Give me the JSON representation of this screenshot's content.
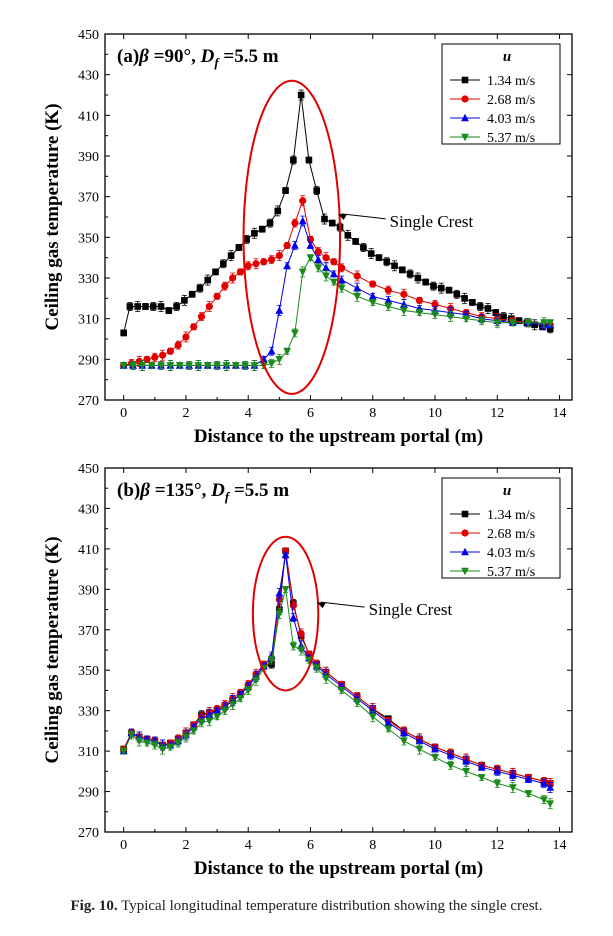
{
  "caption": {
    "label": "Fig. 10.",
    "text": "Typical longitudinal temperature distribution showing the single crest."
  },
  "chart_data": [
    {
      "type": "line",
      "panel_label": "(a)",
      "panel_param": "β =90°, D_f =5.5 m",
      "title": "",
      "xlabel": "Distance to the upstream portal (m)",
      "ylabel": "Ceiling gas temperature (K)",
      "xlim": [
        -0.6,
        14.4
      ],
      "ylim": [
        270,
        450
      ],
      "xticks": [
        0,
        2,
        4,
        6,
        8,
        10,
        12,
        14
      ],
      "yticks": [
        270,
        290,
        310,
        330,
        350,
        370,
        390,
        410,
        430,
        450
      ],
      "legend_title": "u",
      "legend_position": "top-right",
      "annotation": {
        "text": "Single Crest",
        "ellipse_center": [
          5.4,
          350
        ],
        "ellipse_semi": [
          1.55,
          77
        ]
      },
      "series": [
        {
          "name": "1.34 m/s",
          "color": "#000000",
          "marker": "square",
          "x": [
            0,
            0.2,
            0.45,
            0.7,
            0.95,
            1.2,
            1.45,
            1.7,
            1.95,
            2.2,
            2.45,
            2.7,
            2.95,
            3.2,
            3.45,
            3.7,
            3.95,
            4.2,
            4.45,
            4.7,
            4.95,
            5.2,
            5.45,
            5.7,
            5.95,
            6.2,
            6.45,
            6.7,
            6.95,
            7.2,
            7.45,
            7.7,
            7.95,
            8.2,
            8.45,
            8.7,
            8.95,
            9.2,
            9.45,
            9.7,
            9.95,
            10.2,
            10.45,
            10.7,
            10.95,
            11.2,
            11.45,
            11.7,
            11.95,
            12.2,
            12.45,
            12.7,
            12.95,
            13.2,
            13.45,
            13.7
          ],
          "y": [
            303,
            316,
            316,
            316,
            316,
            316,
            314,
            316,
            319,
            322,
            325,
            329,
            333,
            337,
            341,
            345,
            349,
            352,
            354,
            357,
            363,
            373,
            388,
            420,
            388,
            373,
            359,
            357,
            355,
            351,
            348,
            345,
            342,
            340,
            338,
            336,
            334,
            332,
            330,
            328,
            326,
            325,
            324,
            322,
            320,
            318,
            316,
            315,
            313,
            311,
            310,
            309,
            308,
            307,
            306,
            305
          ]
        },
        {
          "name": "2.68 m/s",
          "color": "#e00000",
          "marker": "circle",
          "x": [
            0,
            0.25,
            0.5,
            0.75,
            1.0,
            1.25,
            1.5,
            1.75,
            2.0,
            2.25,
            2.5,
            2.75,
            3.0,
            3.25,
            3.5,
            3.75,
            4.0,
            4.25,
            4.5,
            4.75,
            5.0,
            5.25,
            5.5,
            5.75,
            6.0,
            6.25,
            6.5,
            6.75,
            7.0,
            7.5,
            8.0,
            8.5,
            9.0,
            9.5,
            10.0,
            10.5,
            11.0,
            11.5,
            12.0,
            12.5,
            13.0,
            13.5,
            13.7
          ],
          "y": [
            287,
            288,
            289,
            290,
            291,
            292,
            294,
            297,
            301,
            306,
            311,
            316,
            321,
            326,
            330,
            333,
            336,
            337,
            338,
            339,
            341,
            346,
            357,
            368,
            349,
            343,
            340,
            338,
            335,
            331,
            327,
            324,
            322,
            319,
            317,
            315,
            313,
            311,
            310,
            309,
            308,
            307,
            307
          ]
        },
        {
          "name": "4.03 m/s",
          "color": "#0000ee",
          "marker": "triangle-up",
          "x": [
            0,
            0.3,
            0.6,
            0.9,
            1.2,
            1.5,
            1.8,
            2.1,
            2.4,
            2.7,
            3.0,
            3.3,
            3.6,
            3.9,
            4.2,
            4.5,
            4.75,
            5.0,
            5.25,
            5.5,
            5.75,
            6.0,
            6.25,
            6.5,
            6.75,
            7.0,
            7.5,
            8.0,
            8.5,
            9.0,
            9.5,
            10.0,
            10.5,
            11.0,
            11.5,
            12.0,
            12.5,
            13.0,
            13.5,
            13.7
          ],
          "y": [
            287,
            287,
            287,
            287,
            287,
            287,
            287,
            287,
            287,
            287,
            287,
            287,
            287,
            287,
            287,
            290,
            294,
            314,
            336,
            346,
            358,
            346,
            339,
            335,
            332,
            329,
            325,
            321,
            319,
            317,
            315,
            314,
            313,
            312,
            310,
            309,
            308,
            308,
            307,
            307
          ]
        },
        {
          "name": "5.37 m/s",
          "color": "#1a8a1a",
          "marker": "triangle-down",
          "x": [
            0,
            0.3,
            0.6,
            0.9,
            1.2,
            1.5,
            1.8,
            2.1,
            2.4,
            2.7,
            3.0,
            3.3,
            3.6,
            3.9,
            4.2,
            4.5,
            4.75,
            5.0,
            5.25,
            5.5,
            5.75,
            6.0,
            6.25,
            6.5,
            6.75,
            7.0,
            7.5,
            8.0,
            8.5,
            9.0,
            9.5,
            10.0,
            10.5,
            11.0,
            11.5,
            12.0,
            12.5,
            13.0,
            13.5,
            13.7
          ],
          "y": [
            287,
            287,
            287,
            287,
            287,
            287,
            287,
            287,
            287,
            287,
            287,
            287,
            287,
            287,
            287,
            287,
            288,
            290,
            294,
            303,
            333,
            340,
            335,
            331,
            328,
            325,
            321,
            318,
            316,
            314,
            313,
            312,
            311,
            310,
            309,
            308,
            308,
            308,
            308,
            308
          ]
        }
      ]
    },
    {
      "type": "line",
      "panel_label": "(b)",
      "panel_param": "β =135°, D_f =5.5 m",
      "title": "",
      "xlabel": "Distance to the upstream portal (m)",
      "ylabel": "Ceiling gas temperature (K)",
      "xlim": [
        -0.6,
        14.4
      ],
      "ylim": [
        270,
        450
      ],
      "xticks": [
        0,
        2,
        4,
        6,
        8,
        10,
        12,
        14
      ],
      "yticks": [
        270,
        290,
        310,
        330,
        350,
        370,
        390,
        410,
        430,
        450
      ],
      "legend_title": "u",
      "legend_position": "top-right",
      "annotation": {
        "text": "Single Crest",
        "ellipse_center": [
          5.2,
          378
        ],
        "ellipse_semi": [
          1.05,
          38
        ]
      },
      "series": [
        {
          "name": "1.34 m/s",
          "color": "#000000",
          "marker": "square",
          "x": [
            0,
            0.25,
            0.5,
            0.75,
            1.0,
            1.25,
            1.5,
            1.75,
            2.0,
            2.25,
            2.5,
            2.75,
            3.0,
            3.25,
            3.5,
            3.75,
            4.0,
            4.25,
            4.5,
            4.75,
            5.0,
            5.2,
            5.45,
            5.7,
            5.95,
            6.2,
            6.5,
            7.0,
            7.5,
            8.0,
            8.5,
            9.0,
            9.5,
            10.0,
            10.5,
            11.0,
            11.5,
            12.0,
            12.5,
            13.0,
            13.5,
            13.7
          ],
          "y": [
            311,
            319,
            317,
            316,
            315,
            313,
            314,
            316,
            319,
            323,
            328,
            329,
            330,
            332,
            335,
            338,
            342,
            347,
            352,
            353,
            380,
            409,
            383,
            367,
            358,
            353,
            349,
            343,
            337,
            331,
            326,
            320,
            316,
            312,
            309,
            306,
            303,
            301,
            299,
            297,
            295,
            294
          ]
        },
        {
          "name": "2.68 m/s",
          "color": "#e00000",
          "marker": "circle",
          "x": [
            0,
            0.25,
            0.5,
            0.75,
            1.0,
            1.25,
            1.5,
            1.75,
            2.0,
            2.25,
            2.5,
            2.75,
            3.0,
            3.25,
            3.5,
            3.75,
            4.0,
            4.25,
            4.5,
            4.75,
            5.0,
            5.2,
            5.45,
            5.7,
            5.95,
            6.2,
            6.5,
            7.0,
            7.5,
            8.0,
            8.5,
            9.0,
            9.5,
            10.0,
            10.5,
            11.0,
            11.5,
            12.0,
            12.5,
            13.0,
            13.5,
            13.7
          ],
          "y": [
            311,
            319,
            317,
            316,
            315,
            313,
            314,
            316,
            319,
            323,
            327,
            329,
            331,
            333,
            336,
            339,
            343,
            348,
            353,
            356,
            385,
            409,
            382,
            368,
            358,
            353,
            349,
            343,
            337,
            331,
            325,
            320,
            316,
            312,
            309,
            306,
            303,
            301,
            299,
            297,
            295,
            294
          ]
        },
        {
          "name": "4.03 m/s",
          "color": "#0000ee",
          "marker": "triangle-up",
          "x": [
            0,
            0.25,
            0.5,
            0.75,
            1.0,
            1.25,
            1.5,
            1.75,
            2.0,
            2.25,
            2.5,
            2.75,
            3.0,
            3.25,
            3.5,
            3.75,
            4.0,
            4.25,
            4.5,
            4.75,
            5.0,
            5.2,
            5.45,
            5.7,
            5.95,
            6.2,
            6.5,
            7.0,
            7.5,
            8.0,
            8.5,
            9.0,
            9.5,
            10.0,
            10.5,
            11.0,
            11.5,
            12.0,
            12.5,
            13.0,
            13.5,
            13.7
          ],
          "y": [
            310,
            319,
            317,
            316,
            315,
            313,
            313,
            315,
            318,
            322,
            326,
            328,
            330,
            332,
            335,
            338,
            342,
            347,
            352,
            357,
            388,
            407,
            376,
            362,
            356,
            352,
            348,
            342,
            336,
            330,
            324,
            319,
            315,
            311,
            308,
            305,
            302,
            300,
            298,
            296,
            294,
            292
          ]
        },
        {
          "name": "5.37 m/s",
          "color": "#1a8a1a",
          "marker": "triangle-down",
          "x": [
            0,
            0.25,
            0.5,
            0.75,
            1.0,
            1.25,
            1.5,
            1.75,
            2.0,
            2.25,
            2.5,
            2.75,
            3.0,
            3.25,
            3.5,
            3.75,
            4.0,
            4.25,
            4.5,
            4.75,
            5.0,
            5.2,
            5.45,
            5.7,
            5.95,
            6.2,
            6.5,
            7.0,
            7.5,
            8.0,
            8.5,
            9.0,
            9.5,
            10.0,
            10.5,
            11.0,
            11.5,
            12.0,
            12.5,
            13.0,
            13.5,
            13.7
          ],
          "y": [
            310,
            318,
            315,
            314,
            313,
            311,
            312,
            314,
            317,
            320,
            324,
            325,
            327,
            330,
            333,
            336,
            340,
            345,
            351,
            355,
            378,
            390,
            362,
            360,
            355,
            351,
            346,
            340,
            334,
            327,
            321,
            315,
            311,
            307,
            303,
            300,
            297,
            294,
            292,
            289,
            286,
            284
          ]
        }
      ]
    }
  ]
}
